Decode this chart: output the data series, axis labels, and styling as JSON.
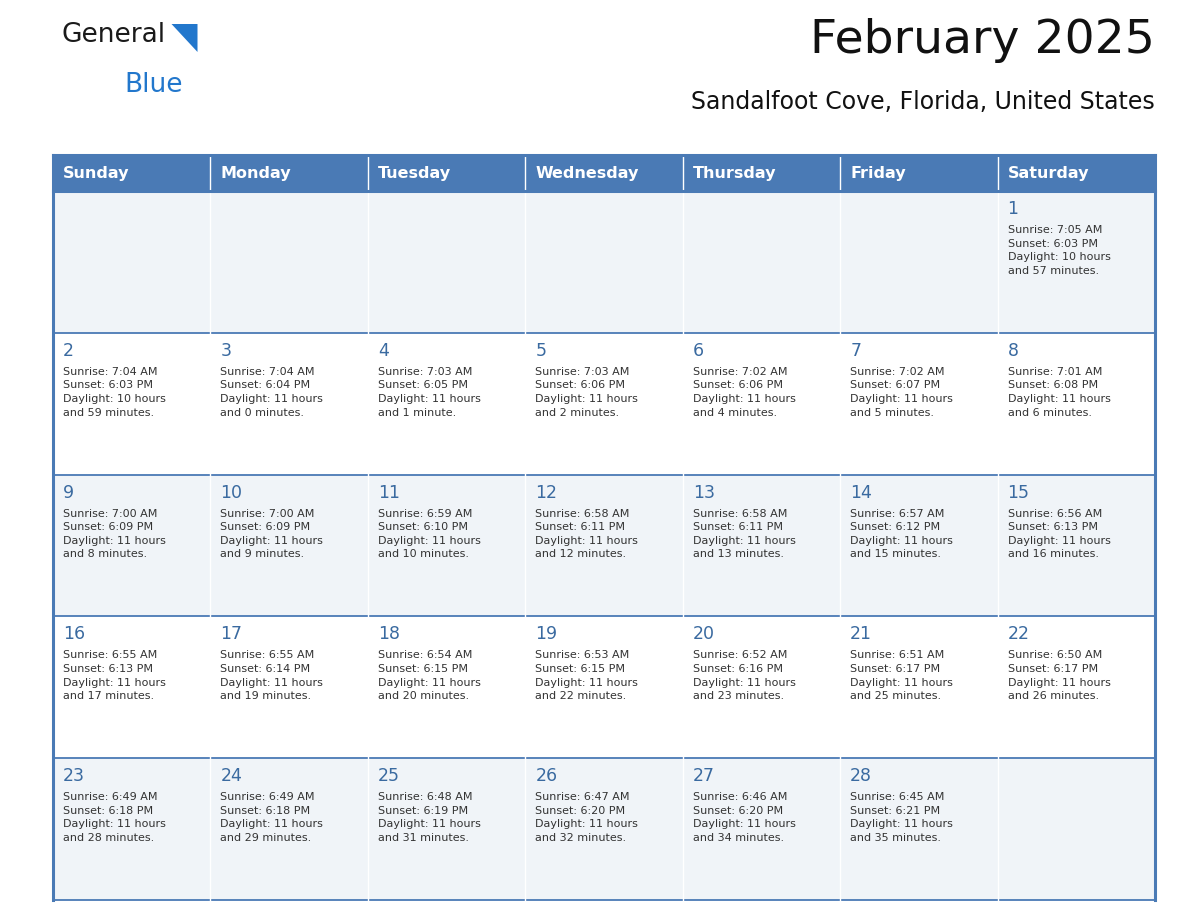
{
  "title": "February 2025",
  "subtitle": "Sandalfoot Cove, Florida, United States",
  "header_bg": "#4a7ab5",
  "header_text": "#FFFFFF",
  "header_days": [
    "Sunday",
    "Monday",
    "Tuesday",
    "Wednesday",
    "Thursday",
    "Friday",
    "Saturday"
  ],
  "row_bg_odd": "#f0f4f8",
  "row_bg_even": "#FFFFFF",
  "day_number_color": "#3a6aa0",
  "text_color": "#333333",
  "border_color": "#4a7ab5",
  "logo_general_color": "#1a1a1a",
  "logo_blue_color": "#2277cc",
  "calendar_data": [
    [
      null,
      null,
      null,
      null,
      null,
      null,
      1
    ],
    [
      2,
      3,
      4,
      5,
      6,
      7,
      8
    ],
    [
      9,
      10,
      11,
      12,
      13,
      14,
      15
    ],
    [
      16,
      17,
      18,
      19,
      20,
      21,
      22
    ],
    [
      23,
      24,
      25,
      26,
      27,
      28,
      null
    ]
  ],
  "sunrise_data": {
    "1": "Sunrise: 7:05 AM\nSunset: 6:03 PM\nDaylight: 10 hours\nand 57 minutes.",
    "2": "Sunrise: 7:04 AM\nSunset: 6:03 PM\nDaylight: 10 hours\nand 59 minutes.",
    "3": "Sunrise: 7:04 AM\nSunset: 6:04 PM\nDaylight: 11 hours\nand 0 minutes.",
    "4": "Sunrise: 7:03 AM\nSunset: 6:05 PM\nDaylight: 11 hours\nand 1 minute.",
    "5": "Sunrise: 7:03 AM\nSunset: 6:06 PM\nDaylight: 11 hours\nand 2 minutes.",
    "6": "Sunrise: 7:02 AM\nSunset: 6:06 PM\nDaylight: 11 hours\nand 4 minutes.",
    "7": "Sunrise: 7:02 AM\nSunset: 6:07 PM\nDaylight: 11 hours\nand 5 minutes.",
    "8": "Sunrise: 7:01 AM\nSunset: 6:08 PM\nDaylight: 11 hours\nand 6 minutes.",
    "9": "Sunrise: 7:00 AM\nSunset: 6:09 PM\nDaylight: 11 hours\nand 8 minutes.",
    "10": "Sunrise: 7:00 AM\nSunset: 6:09 PM\nDaylight: 11 hours\nand 9 minutes.",
    "11": "Sunrise: 6:59 AM\nSunset: 6:10 PM\nDaylight: 11 hours\nand 10 minutes.",
    "12": "Sunrise: 6:58 AM\nSunset: 6:11 PM\nDaylight: 11 hours\nand 12 minutes.",
    "13": "Sunrise: 6:58 AM\nSunset: 6:11 PM\nDaylight: 11 hours\nand 13 minutes.",
    "14": "Sunrise: 6:57 AM\nSunset: 6:12 PM\nDaylight: 11 hours\nand 15 minutes.",
    "15": "Sunrise: 6:56 AM\nSunset: 6:13 PM\nDaylight: 11 hours\nand 16 minutes.",
    "16": "Sunrise: 6:55 AM\nSunset: 6:13 PM\nDaylight: 11 hours\nand 17 minutes.",
    "17": "Sunrise: 6:55 AM\nSunset: 6:14 PM\nDaylight: 11 hours\nand 19 minutes.",
    "18": "Sunrise: 6:54 AM\nSunset: 6:15 PM\nDaylight: 11 hours\nand 20 minutes.",
    "19": "Sunrise: 6:53 AM\nSunset: 6:15 PM\nDaylight: 11 hours\nand 22 minutes.",
    "20": "Sunrise: 6:52 AM\nSunset: 6:16 PM\nDaylight: 11 hours\nand 23 minutes.",
    "21": "Sunrise: 6:51 AM\nSunset: 6:17 PM\nDaylight: 11 hours\nand 25 minutes.",
    "22": "Sunrise: 6:50 AM\nSunset: 6:17 PM\nDaylight: 11 hours\nand 26 minutes.",
    "23": "Sunrise: 6:49 AM\nSunset: 6:18 PM\nDaylight: 11 hours\nand 28 minutes.",
    "24": "Sunrise: 6:49 AM\nSunset: 6:18 PM\nDaylight: 11 hours\nand 29 minutes.",
    "25": "Sunrise: 6:48 AM\nSunset: 6:19 PM\nDaylight: 11 hours\nand 31 minutes.",
    "26": "Sunrise: 6:47 AM\nSunset: 6:20 PM\nDaylight: 11 hours\nand 32 minutes.",
    "27": "Sunrise: 6:46 AM\nSunset: 6:20 PM\nDaylight: 11 hours\nand 34 minutes.",
    "28": "Sunrise: 6:45 AM\nSunset: 6:21 PM\nDaylight: 11 hours\nand 35 minutes."
  }
}
